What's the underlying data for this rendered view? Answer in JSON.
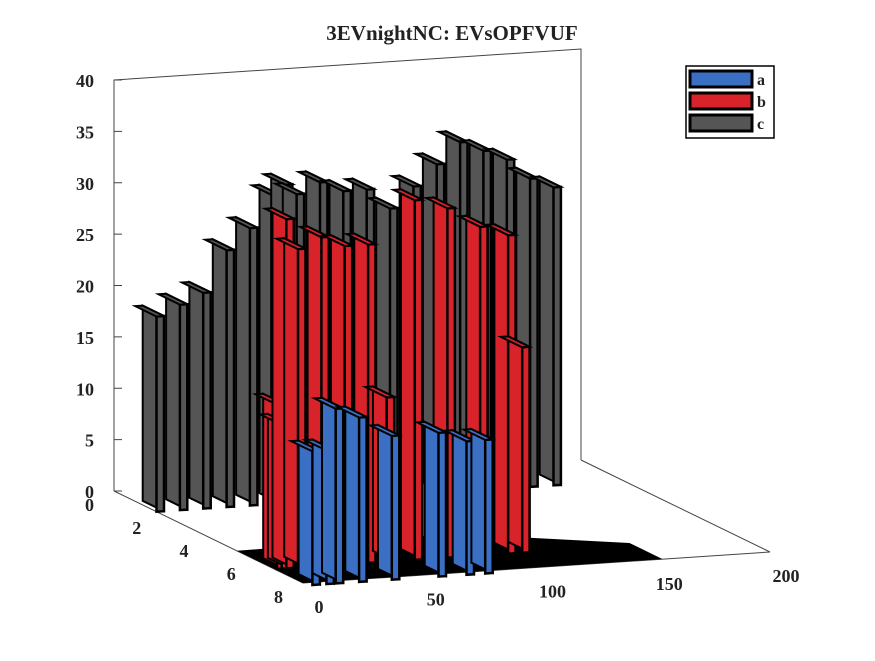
{
  "chart_data": {
    "type": "bar3d",
    "title": "3EVnightNC: EVsOPFVUF",
    "xlabel": "",
    "ylabel": "",
    "zlabel": "",
    "x_axis": {
      "lim": [
        0,
        200
      ],
      "ticks": [
        "0",
        "50",
        "100",
        "150",
        "200"
      ]
    },
    "y_axis": {
      "lim": [
        0,
        8
      ],
      "ticks": [
        "0",
        "2",
        "4",
        "6",
        "8"
      ]
    },
    "z_axis": {
      "lim": [
        0,
        40
      ],
      "ticks": [
        "0",
        "5",
        "10",
        "15",
        "20",
        "25",
        "30",
        "35",
        "40"
      ]
    },
    "legend_position": "top-right",
    "series": [
      {
        "name": "a",
        "color": "#3a6fc4",
        "points": [
          [
            2,
            13
          ],
          [
            8,
            13
          ],
          [
            12,
            17
          ],
          [
            22,
            16
          ],
          [
            36,
            14
          ],
          [
            56,
            14
          ],
          [
            68,
            13
          ],
          [
            76,
            13
          ]
        ]
      },
      {
        "name": "b",
        "color": "#d8232a",
        "points": [
          [
            1,
            16
          ],
          [
            3,
            14
          ],
          [
            5,
            34
          ],
          [
            10,
            31
          ],
          [
            20,
            32
          ],
          [
            30,
            31
          ],
          [
            40,
            31
          ],
          [
            48,
            16
          ],
          [
            60,
            35
          ],
          [
            74,
            34
          ],
          [
            88,
            32
          ],
          [
            100,
            31
          ],
          [
            106,
            20
          ]
        ]
      },
      {
        "name": "c",
        "color": "#555555",
        "points": [
          [
            0,
            19
          ],
          [
            10,
            20
          ],
          [
            20,
            21
          ],
          [
            30,
            25
          ],
          [
            40,
            27
          ],
          [
            50,
            30
          ],
          [
            55,
            31
          ],
          [
            60,
            30
          ],
          [
            70,
            31
          ],
          [
            80,
            30
          ],
          [
            90,
            30
          ],
          [
            100,
            28
          ],
          [
            110,
            30
          ],
          [
            120,
            32
          ],
          [
            130,
            34
          ],
          [
            140,
            33
          ],
          [
            150,
            32
          ],
          [
            160,
            30
          ],
          [
            170,
            29
          ]
        ]
      }
    ]
  }
}
